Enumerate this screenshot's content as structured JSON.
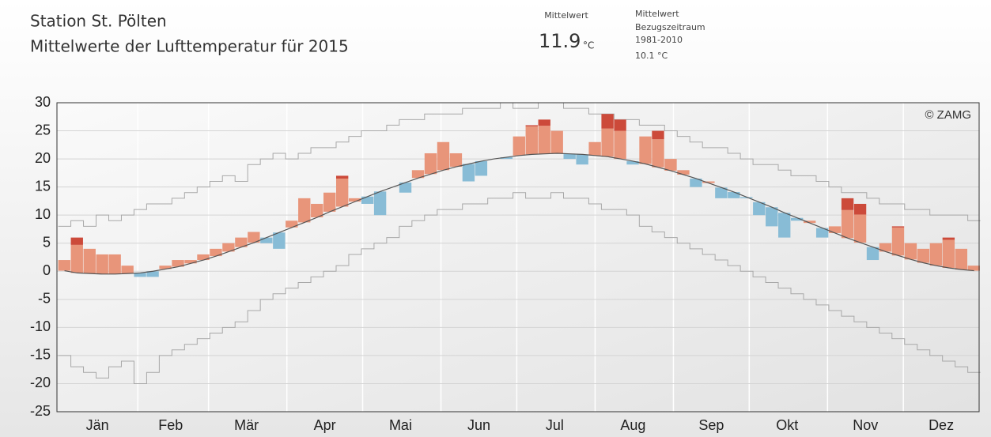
{
  "chart_data": {
    "type": "anomaly",
    "title": "Station St. Pölten",
    "subtitle": "Mittelwerte der Lufttemperatur für 2015",
    "stats": {
      "label": "Mittelwert",
      "value": 11.9,
      "unit": "°C"
    },
    "reference_stats": {
      "lines": [
        "Mittelwert",
        "Bezugszeitraum",
        "1981-2010"
      ],
      "value": "10.1 °C"
    },
    "credit": "© ZAMG",
    "xlim": [
      0,
      365
    ],
    "ylim": [
      -25,
      30
    ],
    "yticks": [
      -25,
      -20,
      -15,
      -10,
      -5,
      0,
      5,
      10,
      15,
      20,
      25,
      30
    ],
    "xticks": [
      {
        "value": 16,
        "label": "Jän"
      },
      {
        "value": 45,
        "label": "Feb"
      },
      {
        "value": 75,
        "label": "Mär"
      },
      {
        "value": 106,
        "label": "Apr"
      },
      {
        "value": 136,
        "label": "Mai"
      },
      {
        "value": 167,
        "label": "Jun"
      },
      {
        "value": 197,
        "label": "Jul"
      },
      {
        "value": 228,
        "label": "Aug"
      },
      {
        "value": 259,
        "label": "Sep"
      },
      {
        "value": 289,
        "label": "Okt"
      },
      {
        "value": 320,
        "label": "Nov"
      },
      {
        "value": 350,
        "label": "Dez"
      }
    ],
    "xgrid": [
      32,
      60,
      91,
      121,
      152,
      182,
      213,
      244,
      274,
      305,
      335
    ],
    "grid": true,
    "warm_colors": [
      "#e8957a",
      "#cc4a3a",
      "#9b1b2c"
    ],
    "cold_colors": [
      "#88bcd6",
      "#2e78a8"
    ],
    "reference_color": "#555555",
    "extreme_color": "#a8a8a8",
    "x": [
      3,
      8,
      13,
      18,
      23,
      28,
      33,
      38,
      43,
      48,
      53,
      58,
      63,
      68,
      73,
      78,
      83,
      88,
      93,
      98,
      103,
      108,
      113,
      118,
      123,
      128,
      133,
      138,
      143,
      148,
      153,
      158,
      163,
      168,
      173,
      178,
      183,
      188,
      193,
      198,
      203,
      208,
      213,
      218,
      223,
      228,
      233,
      238,
      243,
      248,
      253,
      258,
      263,
      268,
      273,
      278,
      283,
      288,
      293,
      298,
      303,
      308,
      313,
      318,
      323,
      328,
      333,
      338,
      343,
      348,
      353,
      358,
      363
    ],
    "values": [
      2,
      6,
      4,
      3,
      3,
      1,
      -1,
      -1,
      1,
      2,
      2,
      3,
      4,
      5,
      6,
      7,
      5,
      4,
      9,
      13,
      12,
      14,
      17,
      13,
      12,
      10,
      15,
      14,
      18,
      21,
      23,
      21,
      16,
      17,
      20,
      20,
      24,
      26,
      27,
      25,
      20,
      19,
      23,
      28,
      27,
      19,
      24,
      25,
      20,
      18,
      15,
      16,
      13,
      13,
      13,
      10,
      8,
      6,
      9,
      9,
      6,
      8,
      13,
      12,
      2,
      5,
      8,
      5,
      4,
      5,
      6,
      4,
      1
    ],
    "reference": [
      0.1,
      -0.3,
      -0.4,
      -0.5,
      -0.5,
      -0.4,
      -0.3,
      0.0,
      0.4,
      0.8,
      1.4,
      2.0,
      2.7,
      3.5,
      4.3,
      5.1,
      6.0,
      6.9,
      7.8,
      8.7,
      9.6,
      10.6,
      11.5,
      12.4,
      13.3,
      14.2,
      15.0,
      15.8,
      16.6,
      17.3,
      18.0,
      18.6,
      19.1,
      19.6,
      20.0,
      20.3,
      20.6,
      20.8,
      20.9,
      21.0,
      20.9,
      20.8,
      20.6,
      20.4,
      20.0,
      19.6,
      19.1,
      18.5,
      17.9,
      17.2,
      16.5,
      15.7,
      14.9,
      14.1,
      13.2,
      12.3,
      11.4,
      10.4,
      9.5,
      8.6,
      7.7,
      6.8,
      5.9,
      5.1,
      4.3,
      3.5,
      2.8,
      2.1,
      1.5,
      1.0,
      0.6,
      0.3,
      0.1
    ],
    "max": [
      8,
      9,
      8,
      10,
      9,
      10,
      11,
      12,
      12,
      13,
      14,
      15,
      16,
      17,
      16,
      19,
      20,
      21,
      20,
      21,
      22,
      22,
      23,
      24,
      25,
      25,
      26,
      27,
      27,
      28,
      28,
      28,
      29,
      29,
      29,
      30,
      29,
      29,
      30,
      30,
      29,
      29,
      28,
      28,
      27,
      27,
      26,
      26,
      25,
      24,
      23,
      22,
      22,
      21,
      20,
      19,
      19,
      18,
      17,
      17,
      16,
      15,
      14,
      14,
      13,
      12,
      12,
      11,
      11,
      10,
      10,
      10,
      9
    ],
    "min": [
      -15,
      -17,
      -18,
      -19,
      -17,
      -16,
      -20,
      -18,
      -15,
      -14,
      -13,
      -12,
      -11,
      -10,
      -9,
      -7,
      -5,
      -4,
      -3,
      -2,
      -1,
      0,
      1,
      3,
      4,
      5,
      6,
      8,
      9,
      10,
      11,
      11,
      12,
      12,
      13,
      13,
      14,
      13,
      13,
      14,
      13,
      13,
      12,
      11,
      11,
      10,
      8,
      7,
      6,
      5,
      4,
      3,
      2,
      1,
      0,
      -1,
      -2,
      -3,
      -4,
      -5,
      -6,
      -7,
      -8,
      -9,
      -10,
      -11,
      -12,
      -13,
      -14,
      -15,
      -16,
      -17,
      -18
    ]
  }
}
